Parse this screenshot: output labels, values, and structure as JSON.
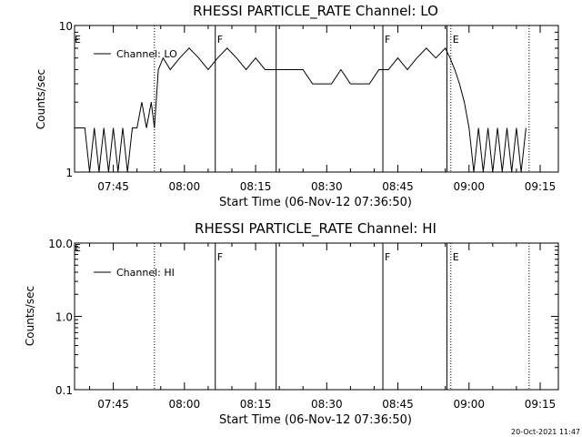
{
  "footer_timestamp": "20-Oct-2021 11:47",
  "chart_data": [
    {
      "type": "line",
      "title": "RHESSI PARTICLE_RATE Channel: LO",
      "xlabel": "Start Time (06-Nov-12 07:36:50)",
      "ylabel": "Counts/sec",
      "yscale": "log",
      "ylim": [
        1,
        10
      ],
      "ytick_labels": [
        "1",
        "10"
      ],
      "ytick_values": [
        1,
        10
      ],
      "xlim": [
        "07:36:50",
        "09:18:50"
      ],
      "xtick_labels": [
        "07:45",
        "08:00",
        "08:15",
        "08:30",
        "08:45",
        "09:00",
        "09:15"
      ],
      "legend": {
        "label": "Channel: LO",
        "position": "top-left"
      },
      "markers": [
        {
          "time": "07:53:40",
          "label": "",
          "style": "dotted"
        },
        {
          "time": "08:06:30",
          "label": "F",
          "style": "solid"
        },
        {
          "time": "08:19:20",
          "label": "",
          "style": "solid"
        },
        {
          "time": "08:41:50",
          "label": "F",
          "style": "solid"
        },
        {
          "time": "08:55:20",
          "label": "",
          "style": "solid"
        },
        {
          "time": "08:56:10",
          "label": "E",
          "style": "dotted"
        },
        {
          "time": "09:12:40",
          "label": "",
          "style": "dotted"
        }
      ],
      "edge_label": "E",
      "series": [
        {
          "name": "Channel: LO",
          "x": [
            "07:36:50",
            "07:39:00",
            "07:40:00",
            "07:41:00",
            "07:42:00",
            "07:43:00",
            "07:44:00",
            "07:45:00",
            "07:46:00",
            "07:47:00",
            "07:48:00",
            "07:49:00",
            "07:50:00",
            "07:51:00",
            "07:52:00",
            "07:53:00",
            "07:53:40",
            "07:54:30",
            "07:55:30",
            "07:57:00",
            "07:59:00",
            "08:01:00",
            "08:03:00",
            "08:05:00",
            "08:07:00",
            "08:09:00",
            "08:11:00",
            "08:13:00",
            "08:15:00",
            "08:17:00",
            "08:19:00",
            "08:21:00",
            "08:23:00",
            "08:25:00",
            "08:27:00",
            "08:29:00",
            "08:31:00",
            "08:33:00",
            "08:35:00",
            "08:37:00",
            "08:39:00",
            "08:41:00",
            "08:43:00",
            "08:45:00",
            "08:47:00",
            "08:49:00",
            "08:51:00",
            "08:53:00",
            "08:55:00",
            "08:56:00",
            "08:57:00",
            "08:58:00",
            "08:59:00",
            "09:00:00",
            "09:01:00",
            "09:02:00",
            "09:03:00",
            "09:04:00",
            "09:05:00",
            "09:06:00",
            "09:07:00",
            "09:08:00",
            "09:09:00",
            "09:10:00",
            "09:11:00",
            "09:12:00"
          ],
          "values": [
            2,
            2,
            1,
            2,
            1,
            2,
            1,
            2,
            1,
            2,
            1,
            2,
            2,
            3,
            2,
            3,
            2,
            5,
            6,
            5,
            6,
            7,
            6,
            5,
            6,
            7,
            6,
            5,
            6,
            5,
            5,
            5,
            5,
            5,
            4,
            4,
            4,
            5,
            4,
            4,
            4,
            5,
            5,
            6,
            5,
            6,
            7,
            6,
            7,
            6,
            5,
            4,
            3,
            2,
            1,
            2,
            1,
            2,
            1,
            2,
            1,
            2,
            1,
            2,
            1,
            2
          ]
        }
      ]
    },
    {
      "type": "line",
      "title": "RHESSI PARTICLE_RATE Channel: HI",
      "xlabel": "Start Time (06-Nov-12 07:36:50)",
      "ylabel": "Counts/sec",
      "yscale": "log",
      "ylim": [
        0.1,
        10
      ],
      "ytick_labels": [
        "0.1",
        "1.0",
        "10.0"
      ],
      "ytick_values": [
        0.1,
        1,
        10
      ],
      "xlim": [
        "07:36:50",
        "09:18:50"
      ],
      "xtick_labels": [
        "07:45",
        "08:00",
        "08:15",
        "08:30",
        "08:45",
        "09:00",
        "09:15"
      ],
      "legend": {
        "label": "Channel: HI",
        "position": "top-left"
      },
      "markers": [
        {
          "time": "07:53:40",
          "label": "",
          "style": "dotted"
        },
        {
          "time": "08:06:30",
          "label": "F",
          "style": "solid"
        },
        {
          "time": "08:19:20",
          "label": "",
          "style": "solid"
        },
        {
          "time": "08:41:50",
          "label": "F",
          "style": "solid"
        },
        {
          "time": "08:55:20",
          "label": "",
          "style": "solid"
        },
        {
          "time": "08:56:10",
          "label": "E",
          "style": "dotted"
        },
        {
          "time": "09:12:40",
          "label": "",
          "style": "dotted"
        }
      ],
      "edge_label": "E",
      "series": [
        {
          "name": "Channel: HI",
          "x": [],
          "values": []
        }
      ]
    }
  ]
}
